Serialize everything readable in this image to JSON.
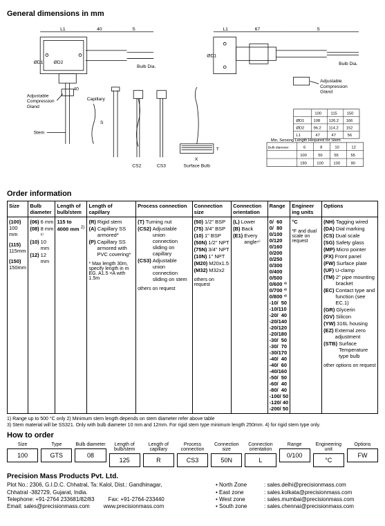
{
  "titles": {
    "dimensions": "General dimensions in mm",
    "order": "Order information",
    "howto": "How to order"
  },
  "diagram": {
    "labels": {
      "L1": "L1",
      "S": "S",
      "forty": "40",
      "sixtyseven": "67",
      "OD1": "ØD1",
      "OD2": "ØD2",
      "bulbdia": "Bulb Dia.",
      "adj_gland": "Adjustable\nCompression\nGland",
      "capillary": "Capillary",
      "stem": "Stem",
      "cs2": "CS2",
      "cs3": "CS3",
      "surface_bulb": "Surface Bulb",
      "x": "X",
      "t": "T"
    },
    "small_table1": {
      "headers": [
        "",
        "100",
        "115",
        "150"
      ],
      "rows": [
        [
          "ØD1",
          "108",
          "126.2",
          "166"
        ],
        [
          "ØD2",
          "96.2",
          "114.2",
          "152"
        ],
        [
          "L1",
          "47",
          "47",
          "56"
        ]
      ]
    },
    "small_table2": {
      "title": "Min. Sensing Length Required for Stem",
      "headers": [
        "",
        "6",
        "8",
        "10",
        "12"
      ],
      "rows": [
        [
          "",
          "100",
          "50",
          "55",
          "55"
        ],
        [
          "",
          "190",
          "100",
          "100",
          "90"
        ]
      ],
      "leftLabels": [
        "Bulb diameter",
        "Min sensing length",
        "Min sensing length"
      ]
    }
  },
  "order_headers": [
    "Size",
    "Bulb diameter",
    "Length of bulb/stem",
    "Length of capillary",
    "Process connection",
    "Connection size",
    "Connection orientation",
    "Range",
    "Engineer ing units",
    "Options"
  ],
  "order_cols": {
    "size": [
      {
        "code": "(100)",
        "desc": "100 mm"
      },
      {
        "code": "(115)",
        "desc": "115mm"
      },
      {
        "code": "(150)",
        "desc": "150mm"
      }
    ],
    "bulb_dia": [
      {
        "code": "(06)",
        "desc": "6 mm"
      },
      {
        "code": "(08)",
        "desc": "8 mm ¹⁾"
      },
      {
        "code": "(10)",
        "desc": "10 mm"
      },
      {
        "code": "(12)",
        "desc": "12 mm"
      }
    ],
    "len_bulbstem": [
      {
        "code": "",
        "desc": "115 to 4000 mm ²⁾"
      }
    ],
    "len_capillary": [
      {
        "code": "(R)",
        "desc": "Rigid stem"
      },
      {
        "code": "(A)",
        "desc": "Capillary SS armored*"
      },
      {
        "code": "(P)",
        "desc": "Capillary SS armored with PVC covering*"
      }
    ],
    "len_capillary_note": "* Max length 30m, specify length in m EG. A1.5 =A with 1.5m",
    "process_conn": [
      {
        "code": "(T)",
        "desc": "Turning nut"
      },
      {
        "code": "(CS2)",
        "desc": "Adjustable union connection sliding on capillary"
      },
      {
        "code": "(CS3)",
        "desc": "Adjustable union connection sliding on stem"
      }
    ],
    "process_conn_foot": "others on request",
    "conn_size": [
      {
        "code": "(50)",
        "desc": "1/2\" BSP"
      },
      {
        "code": "(75)",
        "desc": "3/4\" BSP"
      },
      {
        "code": "(10)",
        "desc": "1\" BSP"
      },
      {
        "code": "(50N)",
        "desc": "1/2\" NPT"
      },
      {
        "code": "(75N)",
        "desc": "3/4\" NPT"
      },
      {
        "code": "(10N)",
        "desc": "1\" NPT"
      },
      {
        "code": "(M20)",
        "desc": "M20x1.5"
      },
      {
        "code": "(M32)",
        "desc": "M32x2"
      }
    ],
    "conn_size_foot": "others on request",
    "conn_orient": [
      {
        "code": "(L)",
        "desc": "Lower"
      },
      {
        "code": "(B)",
        "desc": "Back"
      },
      {
        "code": "(E1)",
        "desc": "Every angle⁴⁾"
      }
    ],
    "range": [
      "0/  60",
      "0/  80",
      "0/100",
      "0/120",
      "0/160",
      "0/200",
      "0/250",
      "0/300",
      "0/400",
      "0/500",
      "0/600 ³⁾",
      "0/700 ³⁾",
      "0/800 ³⁾",
      "",
      "-10/  50",
      "-10/110",
      "-20/  40",
      "-20/140",
      "-20/120",
      "-20/180",
      "-30/  50",
      "-30/  70",
      "-30/170",
      "-40/  40",
      "-40/  60",
      "-40/160",
      "-50/  50",
      "-60/  40",
      "-80/  40",
      "-100/ 50",
      "-120/ 40",
      "-200/ 50"
    ],
    "eng_units": [
      {
        "code": "°C",
        "desc": ""
      }
    ],
    "eng_units_foot": "*F and dual scale on request",
    "options": [
      {
        "code": "(NH)",
        "desc": "Tagging wired"
      },
      {
        "code": "(DA)",
        "desc": "Dial marking"
      },
      {
        "code": "(CS)",
        "desc": "Dual scale"
      },
      {
        "code": "(SG)",
        "desc": "Safety glass"
      },
      {
        "code": "(MP)",
        "desc": "Micro pointer"
      },
      {
        "code": "(FX)",
        "desc": "Front panel"
      },
      {
        "code": "(FW)",
        "desc": "Surface plate"
      },
      {
        "code": "(UF)",
        "desc": "U-clamp"
      },
      {
        "code": "(TM)",
        "desc": "2\" pipe mounting bracket"
      },
      {
        "code": "(EC)",
        "desc": "Contact type and function (see EC.1)"
      },
      {
        "code": "(GR)",
        "desc": "Glycerin"
      },
      {
        "code": "(GV)",
        "desc": "Silicon"
      },
      {
        "code": "(YW)",
        "desc": "316L housing"
      },
      {
        "code": "(EZ)",
        "desc": "External zero adjustment"
      },
      {
        "code": "(STB)",
        "desc": "Surface Temperature type bulb"
      }
    ],
    "options_foot": "other options on request"
  },
  "footnotes": {
    "l1": "1) Range up to 500 °C only   2) Minimum stem length depends on stem diameter refer above table",
    "l2": "3) Stem material will be SS321. Only with bulb diameter 10 mm and 12mm. For rigid stem type minimum length 250mm.         4) for rigid stem type only."
  },
  "howto": {
    "labels": [
      "Size",
      "Type",
      "Bulb diameter",
      "Length of bulb/stem",
      "Length of capillary",
      "Process connection",
      "Connection size",
      "Connection orientation",
      "Range",
      "Engineering unit",
      "Options"
    ],
    "values": [
      "100",
      "GTS",
      "08",
      "125",
      "R",
      "CS3",
      "50N",
      "L",
      "0/100",
      "°C",
      "FW"
    ]
  },
  "company": {
    "name": "Precision Mass Products  Pvt. Ltd.",
    "addr1": "Plot No.: 2306, G.I.D.C. Chhatral, Ta: Kalol, Dist.: Gandhinagar,",
    "addr2": "Chhatral -382729, Gujarat, India.",
    "tel": "Telephone: +91-2764 233681/82/83",
    "fax": "Fax: +91-2764-233440",
    "email": "Email: sales@precisionmass.com",
    "web": "www.precisionmass.com",
    "zones": [
      {
        "z": "• North Zone",
        "e": ": sales.delhi@precisionmass.com"
      },
      {
        "z": "• East zone",
        "e": ": sales.kolkata@precisionmass.com"
      },
      {
        "z": "• West zone",
        "e": ": sales.mumbai@precisionmass.com"
      },
      {
        "z": "• South zone",
        "e": ": sales.chennai@precisionmass.com"
      }
    ]
  }
}
